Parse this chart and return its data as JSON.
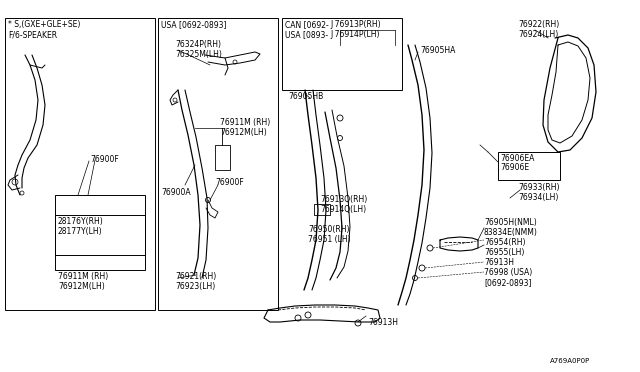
{
  "bg_color": "#ffffff",
  "lc": "#000000",
  "footnote": "A769A0P0P",
  "fs": 5.5,
  "labels": {
    "box1_header": "* S,(GXE+GLE+SE)\nF/6-SPEAKER",
    "box1_76900F": "76900F",
    "box1_28176": "28176Y(RH)\n28177Y(LH)",
    "box1_76911": "76911M (RH)\n76912M(LH)",
    "box2_header": "USA [0692-0893]",
    "box2_76324": "76324P(RH)\n76325M(LH)",
    "box2_76900A": "76900A",
    "box2_76900F": "76900F",
    "box2_76911": "76911M (RH)\n76912M(LH)",
    "box2_76921": "76921(RH)\n76923(LH)",
    "box3_header": "CAN [0692-\nUSA [0893-",
    "box3_76913P": "J 76913P(RH)\nJ 76914P(LH)",
    "box3_76905HB": "76905HB",
    "box3_76905HA": "76905HA",
    "box3_76913Q": "76913Q(RH)\n76914Q(LH)",
    "box3_76950": "76950(RH)\n76951 (LH)",
    "box3_76913H": "76913H",
    "r_76922": "76922(RH)\n76924(LH)",
    "r_76906EA": "76906EA",
    "r_76906E": "76906E",
    "r_76933": "76933(RH)\n76934(LH)",
    "r_76905H": "76905H(NML)\n83834E(NMM)",
    "r_76954": "76954(RH)\n76955(LH)",
    "r_76913H": "76913H",
    "r_76998": "76998 (USA)\n[0692-0893]"
  }
}
